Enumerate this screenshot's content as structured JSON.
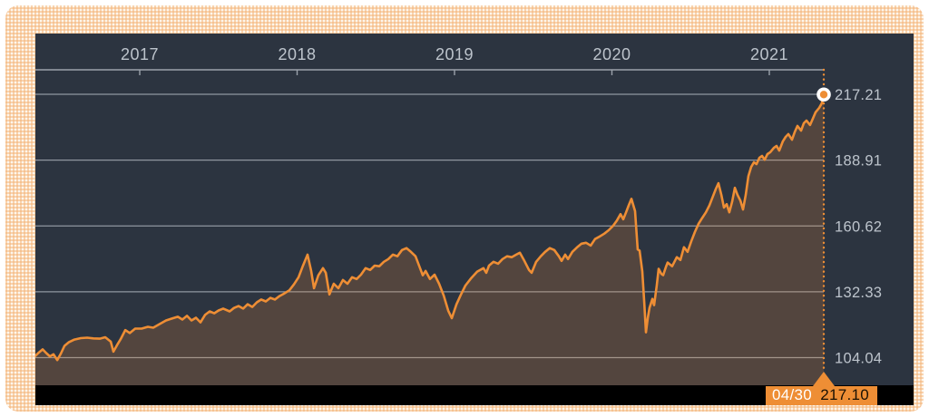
{
  "chart": {
    "x_axis": {
      "labels": [
        "2017",
        "2018",
        "2019",
        "2020",
        "2021"
      ]
    },
    "y_axis": {
      "labels": [
        "217.21",
        "188.91",
        "160.62",
        "132.33",
        "104.04"
      ]
    },
    "tooltip": {
      "date": "04/30",
      "value": "217.10"
    }
  },
  "colors": {
    "accent": "#ee8e35",
    "panel_bg": "#2c3440",
    "grid_line": "#8f969f",
    "axis_line": "#9ba2ab",
    "tick_label": "#bdc4cc",
    "area_fill": "rgba(238,142,53,0.20)",
    "bottom_bar": "#000000",
    "marker_ring": "#ffffff",
    "tooltip_date_color": "#ffffff",
    "tooltip_value_color": "#1a1104",
    "border_pattern_bg": "#fdf6ec",
    "border_pattern_line": "#f3b072"
  },
  "chart_data": {
    "type": "area",
    "title": "",
    "xlabel": "",
    "ylabel": "",
    "x_unit": "decimal_year",
    "x_range": [
      2016.337,
      2021.346
    ],
    "x_tick_values": [
      2017,
      2018,
      2019,
      2020,
      2021
    ],
    "x_tick_labels": [
      "2017",
      "2018",
      "2019",
      "2020",
      "2021"
    ],
    "y_ticks": [
      217.21,
      188.91,
      160.62,
      132.33,
      104.04
    ],
    "grid": "horizontal",
    "legend": "none",
    "end_point": {
      "x": 2021.346,
      "value": 217.1,
      "date_label": "04/30"
    },
    "series": [
      {
        "name": "index-value",
        "points": [
          [
            2016.337,
            104.8
          ],
          [
            2016.36,
            106.3
          ],
          [
            2016.383,
            107.6
          ],
          [
            2016.406,
            106.0
          ],
          [
            2016.429,
            104.6
          ],
          [
            2016.452,
            105.5
          ],
          [
            2016.476,
            103.0
          ],
          [
            2016.499,
            105.8
          ],
          [
            2016.522,
            109.1
          ],
          [
            2016.55,
            110.7
          ],
          [
            2016.585,
            111.8
          ],
          [
            2016.625,
            112.4
          ],
          [
            2016.666,
            112.6
          ],
          [
            2016.706,
            112.3
          ],
          [
            2016.746,
            112.2
          ],
          [
            2016.781,
            112.8
          ],
          [
            2016.816,
            110.9
          ],
          [
            2016.833,
            106.6
          ],
          [
            2016.856,
            109.4
          ],
          [
            2016.879,
            112.0
          ],
          [
            2016.908,
            115.9
          ],
          [
            2016.937,
            114.6
          ],
          [
            2016.971,
            116.5
          ],
          [
            2017.012,
            116.5
          ],
          [
            2017.052,
            117.3
          ],
          [
            2017.086,
            116.9
          ],
          [
            2017.127,
            118.5
          ],
          [
            2017.167,
            120.0
          ],
          [
            2017.202,
            120.8
          ],
          [
            2017.242,
            121.6
          ],
          [
            2017.271,
            120.4
          ],
          [
            2017.3,
            122.0
          ],
          [
            2017.329,
            120.0
          ],
          [
            2017.357,
            121.2
          ],
          [
            2017.386,
            119.2
          ],
          [
            2017.415,
            122.4
          ],
          [
            2017.444,
            123.9
          ],
          [
            2017.473,
            123.1
          ],
          [
            2017.501,
            124.3
          ],
          [
            2017.53,
            125.1
          ],
          [
            2017.571,
            123.9
          ],
          [
            2017.599,
            125.4
          ],
          [
            2017.628,
            126.2
          ],
          [
            2017.657,
            125.1
          ],
          [
            2017.686,
            127.0
          ],
          [
            2017.715,
            125.8
          ],
          [
            2017.744,
            127.8
          ],
          [
            2017.772,
            129.0
          ],
          [
            2017.801,
            128.2
          ],
          [
            2017.83,
            129.7
          ],
          [
            2017.859,
            129.0
          ],
          [
            2017.888,
            130.5
          ],
          [
            2017.916,
            131.5
          ],
          [
            2017.951,
            133.0
          ],
          [
            2017.98,
            135.5
          ],
          [
            2018.009,
            138.6
          ],
          [
            2018.037,
            143.5
          ],
          [
            2018.066,
            148.3
          ],
          [
            2018.089,
            141.3
          ],
          [
            2018.107,
            133.9
          ],
          [
            2018.135,
            139.4
          ],
          [
            2018.164,
            142.5
          ],
          [
            2018.182,
            140.5
          ],
          [
            2018.205,
            131.2
          ],
          [
            2018.233,
            135.8
          ],
          [
            2018.262,
            133.9
          ],
          [
            2018.291,
            137.4
          ],
          [
            2018.32,
            135.8
          ],
          [
            2018.349,
            138.6
          ],
          [
            2018.378,
            137.8
          ],
          [
            2018.406,
            139.7
          ],
          [
            2018.435,
            142.5
          ],
          [
            2018.464,
            141.7
          ],
          [
            2018.493,
            143.6
          ],
          [
            2018.522,
            143.3
          ],
          [
            2018.551,
            145.2
          ],
          [
            2018.579,
            146.4
          ],
          [
            2018.608,
            148.3
          ],
          [
            2018.637,
            147.6
          ],
          [
            2018.666,
            150.3
          ],
          [
            2018.695,
            151.1
          ],
          [
            2018.723,
            149.5
          ],
          [
            2018.752,
            147.6
          ],
          [
            2018.781,
            142.5
          ],
          [
            2018.798,
            139.4
          ],
          [
            2018.816,
            141.3
          ],
          [
            2018.844,
            137.8
          ],
          [
            2018.873,
            139.7
          ],
          [
            2018.902,
            135.8
          ],
          [
            2018.931,
            130.8
          ],
          [
            2018.96,
            124.2
          ],
          [
            2018.983,
            121.0
          ],
          [
            2019.012,
            126.9
          ],
          [
            2019.04,
            131.0
          ],
          [
            2019.069,
            135.0
          ],
          [
            2019.104,
            138.0
          ],
          [
            2019.144,
            141.0
          ],
          [
            2019.184,
            142.5
          ],
          [
            2019.202,
            140.5
          ],
          [
            2019.219,
            143.6
          ],
          [
            2019.248,
            145.2
          ],
          [
            2019.277,
            144.4
          ],
          [
            2019.305,
            146.4
          ],
          [
            2019.334,
            147.6
          ],
          [
            2019.363,
            147.2
          ],
          [
            2019.392,
            148.3
          ],
          [
            2019.415,
            149.1
          ],
          [
            2019.444,
            145.6
          ],
          [
            2019.473,
            141.7
          ],
          [
            2019.49,
            140.5
          ],
          [
            2019.519,
            145.2
          ],
          [
            2019.548,
            147.6
          ],
          [
            2019.576,
            149.5
          ],
          [
            2019.605,
            151.1
          ],
          [
            2019.634,
            150.3
          ],
          [
            2019.663,
            147.6
          ],
          [
            2019.68,
            145.6
          ],
          [
            2019.703,
            148.3
          ],
          [
            2019.721,
            146.4
          ],
          [
            2019.749,
            149.5
          ],
          [
            2019.778,
            151.4
          ],
          [
            2019.807,
            153.0
          ],
          [
            2019.836,
            153.4
          ],
          [
            2019.865,
            152.2
          ],
          [
            2019.893,
            155.0
          ],
          [
            2019.922,
            156.1
          ],
          [
            2019.951,
            157.3
          ],
          [
            2019.98,
            158.8
          ],
          [
            2020.009,
            160.8
          ],
          [
            2020.032,
            163.0
          ],
          [
            2020.055,
            165.7
          ],
          [
            2020.072,
            163.5
          ],
          [
            2020.09,
            166.5
          ],
          [
            2020.107,
            169.5
          ],
          [
            2020.124,
            172.3
          ],
          [
            2020.147,
            167.0
          ],
          [
            2020.164,
            150.5
          ],
          [
            2020.176,
            150.0
          ],
          [
            2020.193,
            141.0
          ],
          [
            2020.205,
            128.0
          ],
          [
            2020.216,
            114.9
          ],
          [
            2020.228,
            121.0
          ],
          [
            2020.239,
            125.4
          ],
          [
            2020.257,
            129.3
          ],
          [
            2020.268,
            126.6
          ],
          [
            2020.285,
            135.0
          ],
          [
            2020.297,
            142.2
          ],
          [
            2020.314,
            140.0
          ],
          [
            2020.326,
            139.5
          ],
          [
            2020.343,
            143.0
          ],
          [
            2020.354,
            144.9
          ],
          [
            2020.383,
            143.3
          ],
          [
            2020.412,
            147.2
          ],
          [
            2020.435,
            146.0
          ],
          [
            2020.458,
            151.5
          ],
          [
            2020.481,
            149.5
          ],
          [
            2020.504,
            154.0
          ],
          [
            2020.527,
            158.0
          ],
          [
            2020.55,
            161.5
          ],
          [
            2020.573,
            164.0
          ],
          [
            2020.597,
            166.5
          ],
          [
            2020.62,
            169.5
          ],
          [
            2020.643,
            173.5
          ],
          [
            2020.66,
            176.5
          ],
          [
            2020.677,
            179.0
          ],
          [
            2020.695,
            174.0
          ],
          [
            2020.712,
            168.5
          ],
          [
            2020.729,
            170.0
          ],
          [
            2020.746,
            166.5
          ],
          [
            2020.764,
            171.0
          ],
          [
            2020.781,
            177.0
          ],
          [
            2020.798,
            174.0
          ],
          [
            2020.816,
            171.5
          ],
          [
            2020.833,
            167.7
          ],
          [
            2020.85,
            174.0
          ],
          [
            2020.867,
            182.0
          ],
          [
            2020.885,
            186.0
          ],
          [
            2020.902,
            188.0
          ],
          [
            2020.919,
            187.2
          ],
          [
            2020.937,
            189.9
          ],
          [
            2020.954,
            190.7
          ],
          [
            2020.971,
            189.1
          ],
          [
            2020.988,
            191.5
          ],
          [
            2021.006,
            192.3
          ],
          [
            2021.029,
            194.2
          ],
          [
            2021.046,
            195.0
          ],
          [
            2021.063,
            193.0
          ],
          [
            2021.086,
            197.0
          ],
          [
            2021.104,
            198.9
          ],
          [
            2021.121,
            200.1
          ],
          [
            2021.144,
            197.7
          ],
          [
            2021.161,
            200.9
          ],
          [
            2021.179,
            203.6
          ],
          [
            2021.202,
            201.6
          ],
          [
            2021.219,
            204.8
          ],
          [
            2021.236,
            205.9
          ],
          [
            2021.259,
            204.0
          ],
          [
            2021.276,
            206.7
          ],
          [
            2021.294,
            209.5
          ],
          [
            2021.317,
            211.4
          ],
          [
            2021.334,
            213.4
          ],
          [
            2021.346,
            217.1
          ]
        ]
      }
    ]
  }
}
